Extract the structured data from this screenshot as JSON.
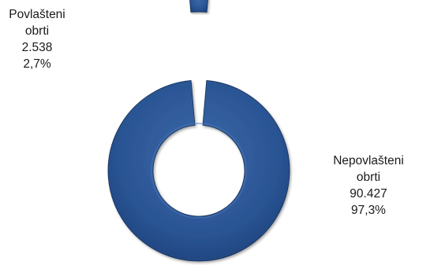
{
  "chart_data": {
    "type": "pie",
    "variant": "doughnut",
    "exploded": true,
    "slices": [
      {
        "label_lines": [
          "Nepovlašteni",
          "obrti"
        ],
        "value": 90427,
        "value_label": "90.427",
        "percent_label": "97,3%"
      },
      {
        "label_lines": [
          "Povlašteni",
          "obrti"
        ],
        "value": 2538,
        "value_label": "2.538",
        "percent_label": "2,7%"
      }
    ],
    "legend": "none",
    "colors": {
      "fill": "#2b5595",
      "highlight": "#4a76b6",
      "shadow": "#162f57"
    }
  }
}
